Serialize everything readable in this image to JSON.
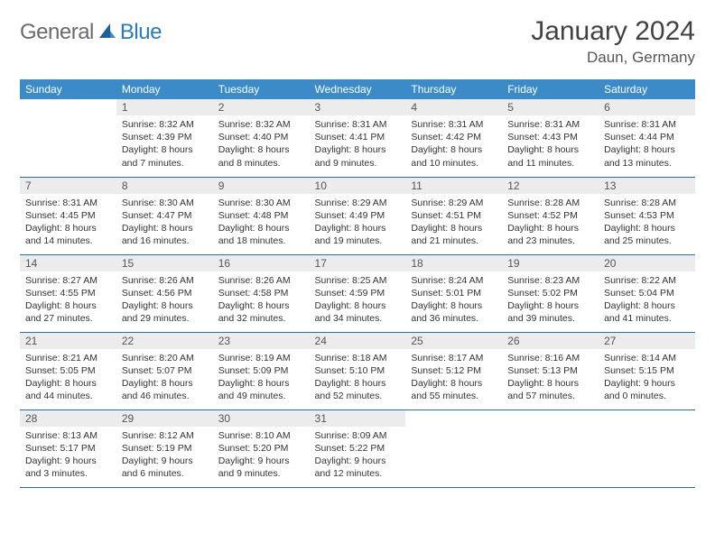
{
  "logo": {
    "text1": "General",
    "text2": "Blue"
  },
  "title": "January 2024",
  "location": "Daun, Germany",
  "colors": {
    "header_bg": "#3b8bc9",
    "header_text": "#ffffff",
    "daynum_bg": "#ececec",
    "border": "#2b6fa8",
    "logo_gray": "#6b6b6b",
    "logo_blue": "#2b7bbf"
  },
  "day_headers": [
    "Sunday",
    "Monday",
    "Tuesday",
    "Wednesday",
    "Thursday",
    "Friday",
    "Saturday"
  ],
  "weeks": [
    [
      {
        "num": "",
        "lines": []
      },
      {
        "num": "1",
        "lines": [
          "Sunrise: 8:32 AM",
          "Sunset: 4:39 PM",
          "Daylight: 8 hours",
          "and 7 minutes."
        ]
      },
      {
        "num": "2",
        "lines": [
          "Sunrise: 8:32 AM",
          "Sunset: 4:40 PM",
          "Daylight: 8 hours",
          "and 8 minutes."
        ]
      },
      {
        "num": "3",
        "lines": [
          "Sunrise: 8:31 AM",
          "Sunset: 4:41 PM",
          "Daylight: 8 hours",
          "and 9 minutes."
        ]
      },
      {
        "num": "4",
        "lines": [
          "Sunrise: 8:31 AM",
          "Sunset: 4:42 PM",
          "Daylight: 8 hours",
          "and 10 minutes."
        ]
      },
      {
        "num": "5",
        "lines": [
          "Sunrise: 8:31 AM",
          "Sunset: 4:43 PM",
          "Daylight: 8 hours",
          "and 11 minutes."
        ]
      },
      {
        "num": "6",
        "lines": [
          "Sunrise: 8:31 AM",
          "Sunset: 4:44 PM",
          "Daylight: 8 hours",
          "and 13 minutes."
        ]
      }
    ],
    [
      {
        "num": "7",
        "lines": [
          "Sunrise: 8:31 AM",
          "Sunset: 4:45 PM",
          "Daylight: 8 hours",
          "and 14 minutes."
        ]
      },
      {
        "num": "8",
        "lines": [
          "Sunrise: 8:30 AM",
          "Sunset: 4:47 PM",
          "Daylight: 8 hours",
          "and 16 minutes."
        ]
      },
      {
        "num": "9",
        "lines": [
          "Sunrise: 8:30 AM",
          "Sunset: 4:48 PM",
          "Daylight: 8 hours",
          "and 18 minutes."
        ]
      },
      {
        "num": "10",
        "lines": [
          "Sunrise: 8:29 AM",
          "Sunset: 4:49 PM",
          "Daylight: 8 hours",
          "and 19 minutes."
        ]
      },
      {
        "num": "11",
        "lines": [
          "Sunrise: 8:29 AM",
          "Sunset: 4:51 PM",
          "Daylight: 8 hours",
          "and 21 minutes."
        ]
      },
      {
        "num": "12",
        "lines": [
          "Sunrise: 8:28 AM",
          "Sunset: 4:52 PM",
          "Daylight: 8 hours",
          "and 23 minutes."
        ]
      },
      {
        "num": "13",
        "lines": [
          "Sunrise: 8:28 AM",
          "Sunset: 4:53 PM",
          "Daylight: 8 hours",
          "and 25 minutes."
        ]
      }
    ],
    [
      {
        "num": "14",
        "lines": [
          "Sunrise: 8:27 AM",
          "Sunset: 4:55 PM",
          "Daylight: 8 hours",
          "and 27 minutes."
        ]
      },
      {
        "num": "15",
        "lines": [
          "Sunrise: 8:26 AM",
          "Sunset: 4:56 PM",
          "Daylight: 8 hours",
          "and 29 minutes."
        ]
      },
      {
        "num": "16",
        "lines": [
          "Sunrise: 8:26 AM",
          "Sunset: 4:58 PM",
          "Daylight: 8 hours",
          "and 32 minutes."
        ]
      },
      {
        "num": "17",
        "lines": [
          "Sunrise: 8:25 AM",
          "Sunset: 4:59 PM",
          "Daylight: 8 hours",
          "and 34 minutes."
        ]
      },
      {
        "num": "18",
        "lines": [
          "Sunrise: 8:24 AM",
          "Sunset: 5:01 PM",
          "Daylight: 8 hours",
          "and 36 minutes."
        ]
      },
      {
        "num": "19",
        "lines": [
          "Sunrise: 8:23 AM",
          "Sunset: 5:02 PM",
          "Daylight: 8 hours",
          "and 39 minutes."
        ]
      },
      {
        "num": "20",
        "lines": [
          "Sunrise: 8:22 AM",
          "Sunset: 5:04 PM",
          "Daylight: 8 hours",
          "and 41 minutes."
        ]
      }
    ],
    [
      {
        "num": "21",
        "lines": [
          "Sunrise: 8:21 AM",
          "Sunset: 5:05 PM",
          "Daylight: 8 hours",
          "and 44 minutes."
        ]
      },
      {
        "num": "22",
        "lines": [
          "Sunrise: 8:20 AM",
          "Sunset: 5:07 PM",
          "Daylight: 8 hours",
          "and 46 minutes."
        ]
      },
      {
        "num": "23",
        "lines": [
          "Sunrise: 8:19 AM",
          "Sunset: 5:09 PM",
          "Daylight: 8 hours",
          "and 49 minutes."
        ]
      },
      {
        "num": "24",
        "lines": [
          "Sunrise: 8:18 AM",
          "Sunset: 5:10 PM",
          "Daylight: 8 hours",
          "and 52 minutes."
        ]
      },
      {
        "num": "25",
        "lines": [
          "Sunrise: 8:17 AM",
          "Sunset: 5:12 PM",
          "Daylight: 8 hours",
          "and 55 minutes."
        ]
      },
      {
        "num": "26",
        "lines": [
          "Sunrise: 8:16 AM",
          "Sunset: 5:13 PM",
          "Daylight: 8 hours",
          "and 57 minutes."
        ]
      },
      {
        "num": "27",
        "lines": [
          "Sunrise: 8:14 AM",
          "Sunset: 5:15 PM",
          "Daylight: 9 hours",
          "and 0 minutes."
        ]
      }
    ],
    [
      {
        "num": "28",
        "lines": [
          "Sunrise: 8:13 AM",
          "Sunset: 5:17 PM",
          "Daylight: 9 hours",
          "and 3 minutes."
        ]
      },
      {
        "num": "29",
        "lines": [
          "Sunrise: 8:12 AM",
          "Sunset: 5:19 PM",
          "Daylight: 9 hours",
          "and 6 minutes."
        ]
      },
      {
        "num": "30",
        "lines": [
          "Sunrise: 8:10 AM",
          "Sunset: 5:20 PM",
          "Daylight: 9 hours",
          "and 9 minutes."
        ]
      },
      {
        "num": "31",
        "lines": [
          "Sunrise: 8:09 AM",
          "Sunset: 5:22 PM",
          "Daylight: 9 hours",
          "and 12 minutes."
        ]
      },
      {
        "num": "",
        "lines": []
      },
      {
        "num": "",
        "lines": []
      },
      {
        "num": "",
        "lines": []
      }
    ]
  ]
}
